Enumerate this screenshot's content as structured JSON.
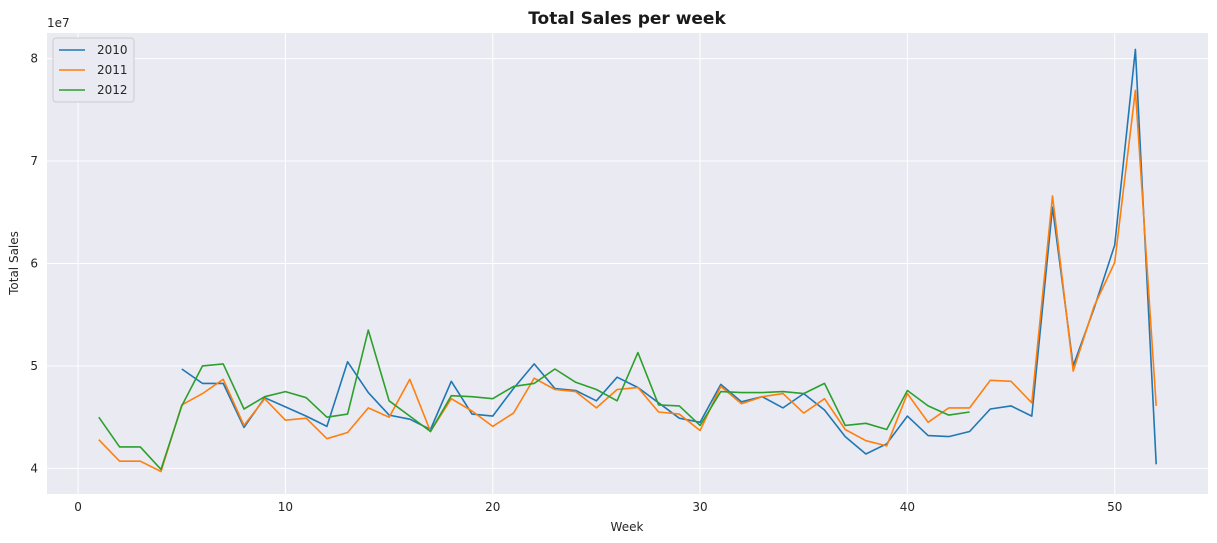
{
  "chart_data": {
    "type": "line",
    "title": "Total Sales per week",
    "xlabel": "Week",
    "ylabel": "Total Sales",
    "y_offset_label": "1e7",
    "y_scale_factor": 10000000,
    "xlim": [
      -1.5,
      54.5
    ],
    "ylim": [
      37500000,
      82500000
    ],
    "x_ticks": [
      0,
      10,
      20,
      30,
      40,
      50
    ],
    "y_ticks": [
      40000000,
      50000000,
      60000000,
      70000000,
      80000000
    ],
    "y_tick_labels": [
      "4",
      "5",
      "6",
      "7",
      "8"
    ],
    "grid": true,
    "legend_position": "top-left",
    "background_color": "#eaeaf2",
    "series": [
      {
        "name": "2010",
        "color": "#1f77b4",
        "x": [
          5,
          6,
          7,
          8,
          9,
          10,
          11,
          12,
          13,
          14,
          15,
          16,
          17,
          18,
          19,
          20,
          21,
          22,
          23,
          24,
          25,
          26,
          27,
          28,
          29,
          30,
          31,
          32,
          33,
          34,
          35,
          36,
          37,
          38,
          39,
          40,
          41,
          42,
          43,
          44,
          45,
          46,
          47,
          48,
          49,
          50,
          51,
          52
        ],
        "values": [
          49700000,
          48300000,
          48300000,
          44000000,
          46900000,
          46000000,
          45100000,
          44100000,
          50400000,
          47400000,
          45200000,
          44800000,
          43800000,
          48500000,
          45300000,
          45100000,
          47800000,
          50200000,
          47800000,
          47600000,
          46600000,
          48900000,
          47900000,
          46400000,
          44900000,
          44500000,
          48200000,
          46500000,
          47000000,
          45900000,
          47300000,
          45700000,
          43100000,
          41400000,
          42400000,
          45100000,
          43200000,
          43100000,
          43600000,
          45800000,
          46100000,
          45100000,
          65500000,
          50000000,
          55600000,
          61800000,
          80900000,
          40400000
        ]
      },
      {
        "name": "2011",
        "color": "#ff7f0e",
        "x": [
          1,
          2,
          3,
          4,
          5,
          6,
          7,
          8,
          9,
          10,
          11,
          12,
          13,
          14,
          15,
          16,
          17,
          18,
          19,
          20,
          21,
          22,
          23,
          24,
          25,
          26,
          27,
          28,
          29,
          30,
          31,
          32,
          33,
          34,
          35,
          36,
          37,
          38,
          39,
          40,
          41,
          42,
          43,
          44,
          45,
          46,
          47,
          48,
          49,
          50,
          51,
          52
        ],
        "values": [
          42800000,
          40700000,
          40700000,
          39700000,
          46200000,
          47300000,
          48700000,
          44200000,
          46800000,
          44700000,
          44900000,
          42900000,
          43500000,
          45900000,
          45000000,
          48700000,
          43600000,
          46800000,
          45600000,
          44100000,
          45400000,
          48800000,
          47700000,
          47500000,
          45900000,
          47700000,
          47900000,
          45500000,
          45300000,
          43700000,
          48000000,
          46300000,
          47000000,
          47300000,
          45400000,
          46800000,
          43800000,
          42700000,
          42200000,
          47300000,
          44500000,
          45900000,
          45900000,
          48600000,
          48500000,
          46400000,
          66600000,
          49500000,
          55800000,
          60100000,
          76900000,
          46100000
        ]
      },
      {
        "name": "2012",
        "color": "#2ca02c",
        "x": [
          1,
          2,
          3,
          4,
          5,
          6,
          7,
          8,
          9,
          10,
          11,
          12,
          13,
          14,
          15,
          16,
          17,
          18,
          19,
          20,
          21,
          22,
          23,
          24,
          25,
          26,
          27,
          28,
          29,
          30,
          31,
          32,
          33,
          34,
          35,
          36,
          37,
          38,
          39,
          40,
          41,
          42,
          43
        ],
        "values": [
          45000000,
          42100000,
          42100000,
          39900000,
          46100000,
          50000000,
          50200000,
          45800000,
          47000000,
          47500000,
          46900000,
          45000000,
          45300000,
          53500000,
          46600000,
          45100000,
          43600000,
          47100000,
          47000000,
          46800000,
          48000000,
          48300000,
          49700000,
          48400000,
          47700000,
          46600000,
          51300000,
          46200000,
          46100000,
          44200000,
          47500000,
          47400000,
          47400000,
          47500000,
          47300000,
          48300000,
          44200000,
          44400000,
          43800000,
          47600000,
          46100000,
          45200000,
          45500000
        ]
      }
    ]
  }
}
